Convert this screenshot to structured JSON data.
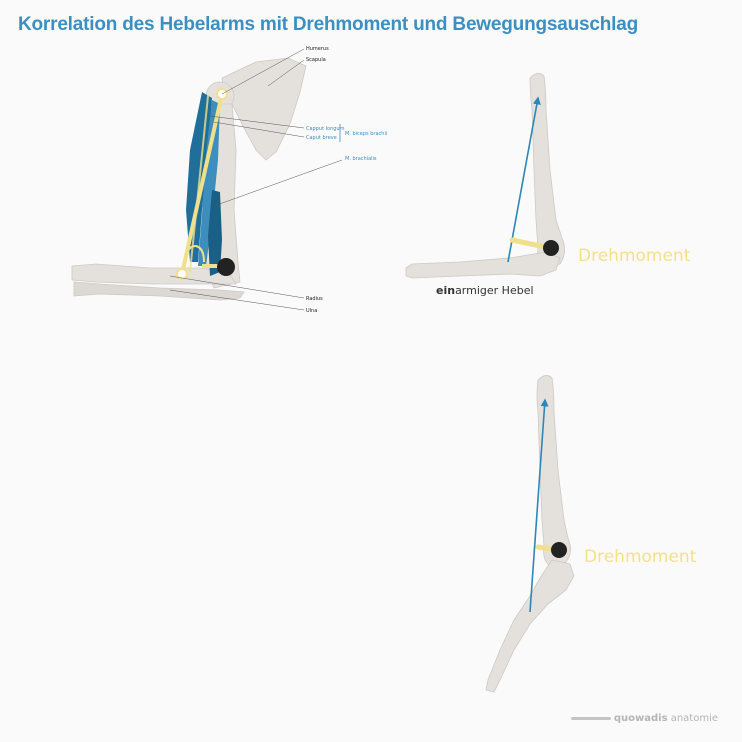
{
  "title": "Korrelation des Hebelarms mit Drehmoment und Bewegungsauschlag",
  "anatomy_labels": {
    "humerus": "Humerus",
    "scapula": "Scapula",
    "capput_longum": "Capput longum",
    "caput_breve": "Caput breve",
    "biceps": "M. biceps brachii",
    "brachialis": "M. brachialis",
    "radius": "Radius",
    "ulna": "Ulna"
  },
  "torque_label_top": "Drehmoment",
  "torque_label_bottom": "Drehmoment",
  "lever": {
    "prefix": "ein",
    "suffix": "armiger Hebel"
  },
  "brand": {
    "name_bold": "quowadis",
    "name_rest": " anatomie"
  },
  "colors": {
    "title": "#3b8fc2",
    "bone": "#e4e1dd",
    "muscle": "#1f6f9a",
    "tendon": "#f1e08a",
    "force_arrow": "#2e86b8",
    "torque_label": "#f5e08c"
  }
}
